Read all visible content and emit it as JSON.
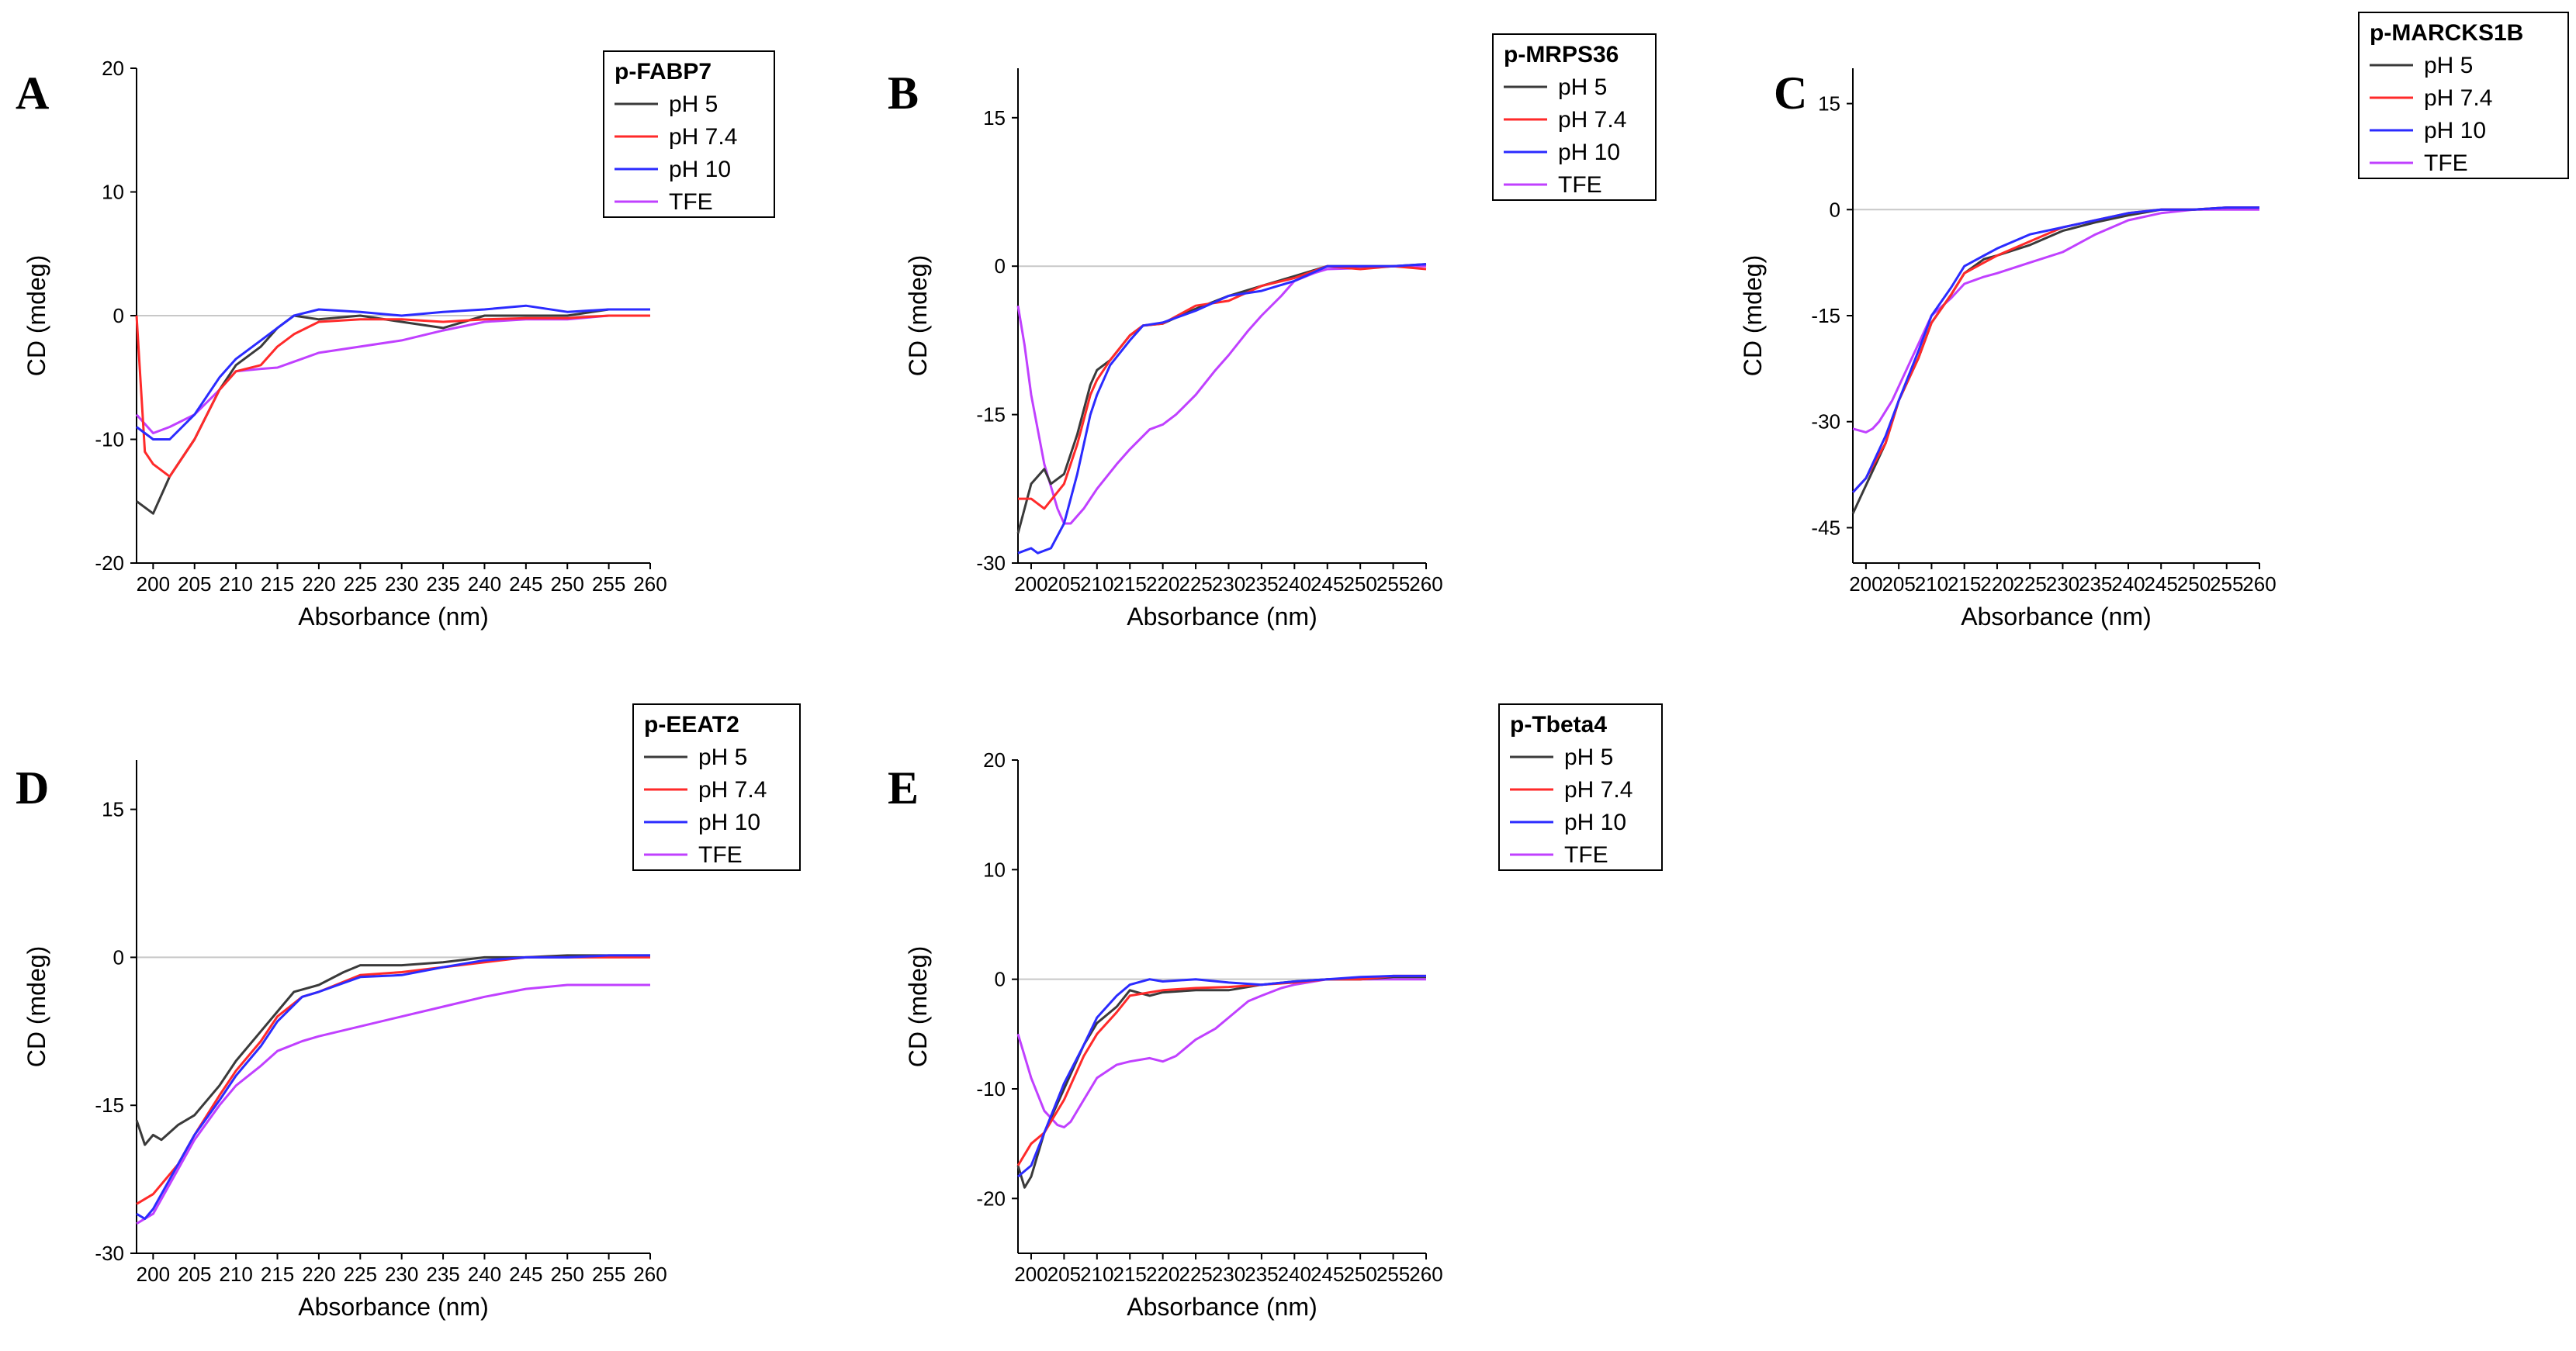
{
  "figure_title": "",
  "colors": {
    "pH 5": "#3a3a3a",
    "pH 7.4": "#ff2a2a",
    "pH 10": "#2b2bff",
    "TFE": "#c040ff",
    "zero_line": "#c8c8c8"
  },
  "chart_data": [
    {
      "panel": "A",
      "type": "line",
      "title": "p-FABP7",
      "xlabel": "Absorbance (nm)",
      "ylabel": "CD (mdeg)",
      "xlim": [
        198,
        260
      ],
      "ylim": [
        -20,
        20
      ],
      "xticks": [
        200,
        205,
        210,
        215,
        220,
        225,
        230,
        235,
        240,
        245,
        250,
        255,
        260
      ],
      "yticks": [
        -20,
        -10,
        0,
        10,
        20
      ],
      "series": [
        {
          "name": "pH 5",
          "x": [
            198,
            200,
            202,
            205,
            208,
            210,
            213,
            215,
            217,
            220,
            225,
            230,
            235,
            240,
            245,
            250,
            255,
            260
          ],
          "y": [
            -15,
            -16,
            -13,
            -10,
            -6,
            -4,
            -2.5,
            -1,
            0,
            -0.3,
            0,
            -0.5,
            -1,
            0,
            0,
            0,
            0.5,
            0.5
          ]
        },
        {
          "name": "pH 7.4",
          "x": [
            198,
            199,
            200,
            202,
            205,
            208,
            210,
            213,
            215,
            217,
            220,
            225,
            230,
            235,
            240,
            245,
            250,
            255,
            260
          ],
          "y": [
            0,
            -11,
            -12,
            -13,
            -10,
            -6,
            -4.5,
            -4,
            -2.5,
            -1.5,
            -0.5,
            -0.3,
            -0.3,
            -0.5,
            -0.3,
            -0.2,
            -0.2,
            0,
            0
          ]
        },
        {
          "name": "pH 10",
          "x": [
            198,
            200,
            202,
            205,
            208,
            210,
            213,
            215,
            217,
            220,
            225,
            230,
            235,
            240,
            245,
            250,
            255,
            260
          ],
          "y": [
            -9,
            -10,
            -10,
            -8,
            -5,
            -3.5,
            -2,
            -1,
            0,
            0.5,
            0.3,
            0,
            0.3,
            0.5,
            0.8,
            0.3,
            0.5,
            0.5
          ]
        },
        {
          "name": "TFE",
          "x": [
            198,
            200,
            202,
            205,
            208,
            210,
            213,
            215,
            220,
            225,
            230,
            235,
            240,
            245,
            250,
            255,
            260
          ],
          "y": [
            -8,
            -9.5,
            -9,
            -8,
            -6,
            -4.5,
            -4.3,
            -4.2,
            -3,
            -2.5,
            -2,
            -1.2,
            -0.5,
            -0.3,
            -0.3,
            0,
            0
          ]
        }
      ]
    },
    {
      "panel": "B",
      "type": "line",
      "title": "p-MRPS36",
      "xlabel": "Absorbance (nm)",
      "ylabel": "CD (mdeg)",
      "xlim": [
        198,
        260
      ],
      "ylim": [
        -30,
        20
      ],
      "xticks": [
        200,
        205,
        210,
        215,
        220,
        225,
        230,
        235,
        240,
        245,
        250,
        255,
        260
      ],
      "yticks": [
        -30,
        -15,
        0,
        15
      ],
      "series": [
        {
          "name": "pH 5",
          "x": [
            198,
            200,
            202,
            203,
            205,
            207,
            209,
            210,
            212,
            215,
            217,
            220,
            225,
            230,
            235,
            240,
            245,
            250,
            255,
            260
          ],
          "y": [
            -27,
            -22,
            -20.5,
            -22,
            -21,
            -17,
            -12,
            -10.5,
            -9.5,
            -7,
            -6,
            -5.8,
            -4.3,
            -3,
            -2,
            -1,
            0,
            0,
            0,
            0.2
          ]
        },
        {
          "name": "pH 7.4",
          "x": [
            198,
            200,
            202,
            205,
            207,
            209,
            210,
            212,
            215,
            217,
            220,
            225,
            230,
            235,
            240,
            245,
            250,
            255,
            260
          ],
          "y": [
            -23.5,
            -23.5,
            -24.5,
            -22,
            -18,
            -13,
            -11.5,
            -9.5,
            -7,
            -6,
            -5.8,
            -4,
            -3.5,
            -2,
            -1.2,
            0,
            -0.3,
            0,
            -0.3
          ]
        },
        {
          "name": "pH 10",
          "x": [
            198,
            200,
            201,
            203,
            205,
            207,
            209,
            210,
            212,
            215,
            217,
            220,
            225,
            230,
            235,
            240,
            245,
            250,
            255,
            260
          ],
          "y": [
            -29,
            -28.5,
            -29,
            -28.5,
            -26,
            -21,
            -15,
            -13,
            -10,
            -7.5,
            -6,
            -5.7,
            -4.5,
            -3,
            -2.5,
            -1.5,
            0,
            0,
            0,
            0.2
          ]
        },
        {
          "name": "TFE",
          "x": [
            198,
            199,
            200,
            202,
            204,
            205,
            206,
            208,
            210,
            213,
            215,
            218,
            220,
            222,
            225,
            228,
            230,
            233,
            235,
            238,
            240,
            243,
            245,
            250,
            255,
            260
          ],
          "y": [
            -4,
            -8,
            -13,
            -20,
            -24.5,
            -26,
            -26,
            -24.5,
            -22.5,
            -20,
            -18.5,
            -16.5,
            -16,
            -15,
            -13,
            -10.5,
            -9,
            -6.5,
            -5,
            -3,
            -1.5,
            -0.7,
            -0.3,
            -0.2,
            0,
            0
          ]
        }
      ]
    },
    {
      "panel": "C",
      "type": "line",
      "title": "p-MARCKS1B",
      "xlabel": "Absorbance (nm)",
      "ylabel": "CD (mdeg)",
      "xlim": [
        198,
        260
      ],
      "ylim": [
        -50,
        20
      ],
      "xticks": [
        200,
        205,
        210,
        215,
        220,
        225,
        230,
        235,
        240,
        245,
        250,
        255,
        260
      ],
      "yticks": [
        -45,
        -30,
        -15,
        0,
        15
      ],
      "series": [
        {
          "name": "pH 5",
          "x": [
            198,
            200,
            203,
            205,
            208,
            210,
            213,
            215,
            218,
            220,
            225,
            230,
            235,
            240,
            245,
            250,
            255,
            260
          ],
          "y": [
            -43,
            -39,
            -33,
            -27,
            -21,
            -16,
            -12,
            -9,
            -7,
            -6.5,
            -5,
            -3,
            -1.8,
            -0.8,
            0,
            0,
            0.3,
            0.3
          ]
        },
        {
          "name": "pH 7.4",
          "x": [
            198,
            200,
            203,
            205,
            208,
            210,
            213,
            215,
            218,
            220,
            225,
            230,
            235,
            240,
            245,
            250,
            255,
            260
          ],
          "y": [
            -40,
            -38,
            -33,
            -27,
            -21,
            -16,
            -12,
            -9,
            -7.5,
            -6.5,
            -4.5,
            -2.5,
            -1.5,
            -0.5,
            0,
            0,
            0.3,
            0.3
          ]
        },
        {
          "name": "pH 10",
          "x": [
            198,
            200,
            203,
            205,
            208,
            210,
            213,
            215,
            218,
            220,
            225,
            230,
            235,
            240,
            245,
            250,
            255,
            260
          ],
          "y": [
            -40,
            -38,
            -32,
            -27,
            -20,
            -15,
            -11,
            -8,
            -6.5,
            -5.5,
            -3.5,
            -2.5,
            -1.5,
            -0.5,
            0,
            0,
            0.3,
            0.3
          ]
        },
        {
          "name": "TFE",
          "x": [
            198,
            200,
            201,
            202,
            204,
            205,
            208,
            210,
            213,
            215,
            218,
            220,
            225,
            230,
            235,
            240,
            245,
            250,
            255,
            260
          ],
          "y": [
            -31,
            -31.5,
            -31,
            -30,
            -27,
            -25,
            -19,
            -15,
            -12.5,
            -10.5,
            -9.5,
            -9,
            -7.5,
            -6,
            -3.5,
            -1.5,
            -0.5,
            0,
            0,
            0
          ]
        }
      ]
    },
    {
      "panel": "D",
      "type": "line",
      "title": "p-EEAT2",
      "xlabel": "Absorbance (nm)",
      "ylabel": "CD (mdeg)",
      "xlim": [
        198,
        260
      ],
      "ylim": [
        -30,
        20
      ],
      "xticks": [
        200,
        205,
        210,
        215,
        220,
        225,
        230,
        235,
        240,
        245,
        250,
        255,
        260
      ],
      "yticks": [
        -30,
        -15,
        0,
        15
      ],
      "series": [
        {
          "name": "pH 5",
          "x": [
            198,
            199,
            200,
            201,
            203,
            205,
            208,
            210,
            213,
            215,
            217,
            220,
            223,
            225,
            230,
            235,
            240,
            245,
            250,
            255,
            260
          ],
          "y": [
            -16.5,
            -19,
            -18,
            -18.5,
            -17,
            -16,
            -13,
            -10.5,
            -7.5,
            -5.5,
            -3.5,
            -2.8,
            -1.5,
            -0.8,
            -0.8,
            -0.5,
            0,
            0,
            0.2,
            0.2,
            0.2
          ]
        },
        {
          "name": "pH 7.4",
          "x": [
            198,
            200,
            203,
            205,
            208,
            210,
            213,
            215,
            218,
            220,
            225,
            230,
            235,
            240,
            245,
            250,
            255,
            260
          ],
          "y": [
            -25,
            -24,
            -21,
            -18,
            -14,
            -11.5,
            -8.5,
            -6,
            -4,
            -3.5,
            -1.8,
            -1.5,
            -1,
            -0.5,
            0,
            0,
            0,
            0
          ]
        },
        {
          "name": "pH 10",
          "x": [
            198,
            199,
            200,
            203,
            205,
            208,
            210,
            213,
            215,
            218,
            220,
            225,
            230,
            235,
            240,
            245,
            250,
            255,
            260
          ],
          "y": [
            -26,
            -26.5,
            -25.5,
            -21,
            -18,
            -14.5,
            -12,
            -9,
            -6.5,
            -4,
            -3.5,
            -2,
            -1.8,
            -1,
            -0.3,
            0,
            0,
            0.2,
            0.2
          ]
        },
        {
          "name": "TFE",
          "x": [
            198,
            200,
            203,
            205,
            208,
            210,
            213,
            215,
            218,
            220,
            225,
            230,
            235,
            240,
            245,
            250,
            255,
            260
          ],
          "y": [
            -27,
            -26,
            -21.5,
            -18.5,
            -15,
            -13,
            -11,
            -9.5,
            -8.5,
            -8,
            -7,
            -6,
            -5,
            -4,
            -3.2,
            -2.8,
            -2.8,
            -2.8
          ]
        }
      ]
    },
    {
      "panel": "E",
      "type": "line",
      "title": "p-Tbeta4",
      "xlabel": "Absorbance (nm)",
      "ylabel": "CD (mdeg)",
      "xlim": [
        198,
        260
      ],
      "ylim": [
        -25,
        20
      ],
      "xticks": [
        200,
        205,
        210,
        215,
        220,
        225,
        230,
        235,
        240,
        245,
        250,
        255,
        260
      ],
      "yticks": [
        -20,
        -10,
        0,
        10,
        20
      ],
      "series": [
        {
          "name": "pH 5",
          "x": [
            198,
            199,
            200,
            202,
            205,
            208,
            210,
            213,
            215,
            218,
            220,
            225,
            230,
            235,
            240,
            245,
            250,
            255,
            260
          ],
          "y": [
            -17,
            -19,
            -18,
            -14,
            -10,
            -6,
            -4,
            -2.5,
            -1,
            -1.5,
            -1.2,
            -1,
            -1,
            -0.5,
            -0.2,
            0,
            0,
            0.2,
            0.2
          ]
        },
        {
          "name": "pH 7.4",
          "x": [
            198,
            200,
            202,
            205,
            208,
            210,
            213,
            215,
            218,
            220,
            225,
            230,
            235,
            240,
            245,
            250,
            255,
            260
          ],
          "y": [
            -17,
            -15,
            -14,
            -11,
            -7,
            -5,
            -3,
            -1.5,
            -1.2,
            -1,
            -0.8,
            -0.7,
            -0.5,
            -0.3,
            0,
            0,
            0.3,
            0.3
          ]
        },
        {
          "name": "pH 10",
          "x": [
            198,
            200,
            202,
            205,
            208,
            210,
            213,
            215,
            218,
            220,
            225,
            230,
            235,
            240,
            245,
            250,
            255,
            260
          ],
          "y": [
            -18,
            -17,
            -14,
            -9.5,
            -6,
            -3.5,
            -1.5,
            -0.5,
            0,
            -0.2,
            0,
            -0.3,
            -0.5,
            -0.2,
            0,
            0.2,
            0.3,
            0.3
          ]
        },
        {
          "name": "TFE",
          "x": [
            198,
            199,
            200,
            202,
            204,
            205,
            206,
            208,
            210,
            213,
            215,
            218,
            220,
            222,
            225,
            228,
            230,
            233,
            235,
            238,
            240,
            245,
            250,
            255,
            260
          ],
          "y": [
            -5,
            -7,
            -9,
            -12,
            -13.3,
            -13.5,
            -13,
            -11,
            -9,
            -7.8,
            -7.5,
            -7.2,
            -7.5,
            -7,
            -5.5,
            -4.5,
            -3.5,
            -2,
            -1.5,
            -0.8,
            -0.5,
            0,
            0,
            0,
            0
          ]
        }
      ]
    }
  ]
}
